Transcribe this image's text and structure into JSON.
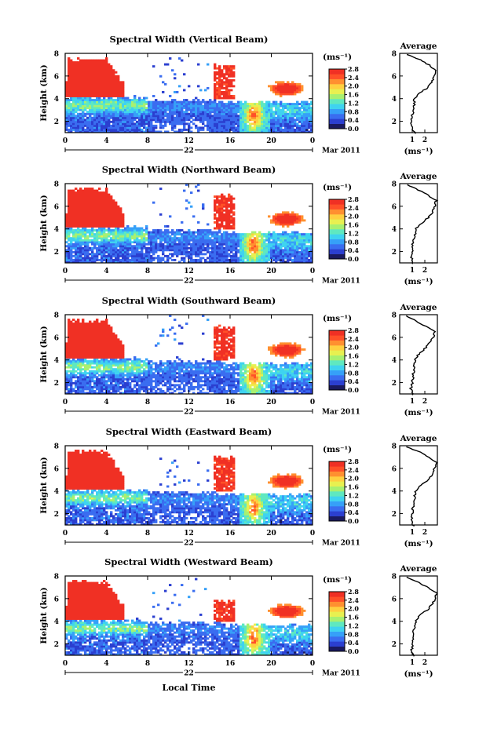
{
  "figure": {
    "bottom_xlabel": "Local Time",
    "x_ticks": [
      "0",
      "4",
      "8",
      "12",
      "16",
      "20",
      "0"
    ],
    "day_label": "22",
    "month_label": "Mar 2011",
    "ylabel": "Height (km)",
    "y_ticks": [
      "2",
      "4",
      "6",
      "8"
    ],
    "cbar_unit": "(ms⁻¹)",
    "avg_title": "Average",
    "avg_xlabel": "(ms⁻¹)",
    "colorscale": [
      "#1a1a60",
      "#2b3fd0",
      "#3a6df0",
      "#36a0f8",
      "#3fd3f0",
      "#5fe8c0",
      "#a8f070",
      "#e8f050",
      "#ffd040",
      "#ff9030",
      "#ff5028",
      "#f03024"
    ]
  },
  "chart_data": [
    {
      "type": "heatmap",
      "title": "Spectral Width (Vertical Beam)",
      "xlabel": "Local Time",
      "ylabel": "Height (km)",
      "xlim": [
        0,
        24
      ],
      "ylim": [
        1,
        8
      ],
      "colorbar": {
        "unit": "(ms⁻¹)",
        "ticks": [
          "0.0",
          "0.4",
          "0.8",
          "1.2",
          "1.6",
          "2.0",
          "2.4",
          "2.8"
        ],
        "range": [
          0.0,
          2.8
        ]
      },
      "profile": {
        "title": "Average",
        "xlabel": "(ms⁻¹)",
        "x_ticks": [
          "1",
          "2"
        ],
        "heights": [
          0.9,
          1.5,
          2.0,
          2.5,
          3.0,
          3.5,
          4.0,
          4.5,
          5.0,
          5.5,
          6.0,
          6.5,
          7.0,
          7.5,
          7.9
        ],
        "values": [
          1.2,
          0.95,
          0.95,
          1.0,
          1.1,
          1.15,
          1.2,
          1.6,
          2.3,
          2.6,
          2.7,
          2.9,
          2.3,
          1.5,
          0.6
        ],
        "xlim": [
          0,
          3
        ]
      }
    },
    {
      "type": "heatmap",
      "title": "Spectral Width (Northward Beam)",
      "xlabel": "Local Time",
      "ylabel": "Height (km)",
      "xlim": [
        0,
        24
      ],
      "ylim": [
        1,
        8
      ],
      "colorbar": {
        "unit": "(ms⁻¹)",
        "ticks": [
          "0.0",
          "0.4",
          "0.8",
          "1.2",
          "1.6",
          "2.0",
          "2.4",
          "2.8"
        ],
        "range": [
          0.0,
          2.8
        ]
      },
      "profile": {
        "title": "Average",
        "xlabel": "(ms⁻¹)",
        "x_ticks": [
          "1",
          "2"
        ],
        "heights": [
          0.9,
          1.5,
          2.0,
          2.5,
          3.0,
          3.5,
          4.0,
          4.5,
          5.0,
          5.5,
          6.0,
          6.5,
          7.0,
          7.5,
          7.9
        ],
        "values": [
          1.1,
          0.9,
          1.0,
          1.0,
          1.1,
          1.2,
          1.3,
          1.7,
          2.3,
          2.6,
          2.8,
          2.9,
          2.2,
          1.4,
          0.6
        ],
        "xlim": [
          0,
          3
        ]
      }
    },
    {
      "type": "heatmap",
      "title": "Spectral Width (Southward Beam)",
      "xlabel": "Local Time",
      "ylabel": "Height (km)",
      "xlim": [
        0,
        24
      ],
      "ylim": [
        1,
        8
      ],
      "colorbar": {
        "unit": "(ms⁻¹)",
        "ticks": [
          "0.0",
          "0.4",
          "0.8",
          "1.2",
          "1.6",
          "2.0",
          "2.4",
          "2.8"
        ],
        "range": [
          0.0,
          2.8
        ]
      },
      "profile": {
        "title": "Average",
        "xlabel": "(ms⁻¹)",
        "x_ticks": [
          "1",
          "2"
        ],
        "heights": [
          0.9,
          1.5,
          2.0,
          2.5,
          3.0,
          3.5,
          4.0,
          4.5,
          5.0,
          5.5,
          6.0,
          6.5,
          7.0,
          7.5,
          7.9
        ],
        "values": [
          1.0,
          0.9,
          1.0,
          1.05,
          1.1,
          1.15,
          1.2,
          1.5,
          2.0,
          2.4,
          2.7,
          2.8,
          2.0,
          1.2,
          0.5
        ],
        "xlim": [
          0,
          3
        ]
      }
    },
    {
      "type": "heatmap",
      "title": "Spectral Width (Eastward Beam)",
      "xlabel": "Local Time",
      "ylabel": "Height (km)",
      "xlim": [
        0,
        24
      ],
      "ylim": [
        1,
        8
      ],
      "colorbar": {
        "unit": "(ms⁻¹)",
        "ticks": [
          "0.0",
          "0.4",
          "0.8",
          "1.2",
          "1.6",
          "2.0",
          "2.4",
          "2.8"
        ],
        "range": [
          0.0,
          2.8
        ]
      },
      "profile": {
        "title": "Average",
        "xlabel": "(ms⁻¹)",
        "x_ticks": [
          "1",
          "2"
        ],
        "heights": [
          0.9,
          1.5,
          2.0,
          2.5,
          3.0,
          3.5,
          4.0,
          4.5,
          5.0,
          5.5,
          6.0,
          6.5,
          7.0,
          7.5,
          7.9
        ],
        "values": [
          1.1,
          0.95,
          1.0,
          1.05,
          1.1,
          1.2,
          1.3,
          1.7,
          2.3,
          2.6,
          2.8,
          2.9,
          2.2,
          1.5,
          0.6
        ],
        "xlim": [
          0,
          3
        ]
      }
    },
    {
      "type": "heatmap",
      "title": "Spectral Width (Westward Beam)",
      "xlabel": "Local Time",
      "ylabel": "Height (km)",
      "xlim": [
        0,
        24
      ],
      "ylim": [
        1,
        8
      ],
      "colorbar": {
        "unit": "(ms⁻¹)",
        "ticks": [
          "0.0",
          "0.4",
          "0.8",
          "1.2",
          "1.6",
          "2.0",
          "2.4",
          "2.8"
        ],
        "range": [
          0.0,
          2.8
        ]
      },
      "profile": {
        "title": "Average",
        "xlabel": "(ms⁻¹)",
        "x_ticks": [
          "1",
          "2"
        ],
        "heights": [
          0.9,
          1.5,
          2.0,
          2.5,
          3.0,
          3.5,
          4.0,
          4.5,
          5.0,
          5.5,
          6.0,
          6.5,
          7.0,
          7.5,
          7.9
        ],
        "values": [
          1.1,
          0.95,
          1.0,
          1.05,
          1.1,
          1.2,
          1.3,
          1.6,
          2.2,
          2.6,
          2.8,
          2.9,
          2.2,
          1.4,
          0.5
        ],
        "xlim": [
          0,
          3
        ]
      }
    }
  ]
}
